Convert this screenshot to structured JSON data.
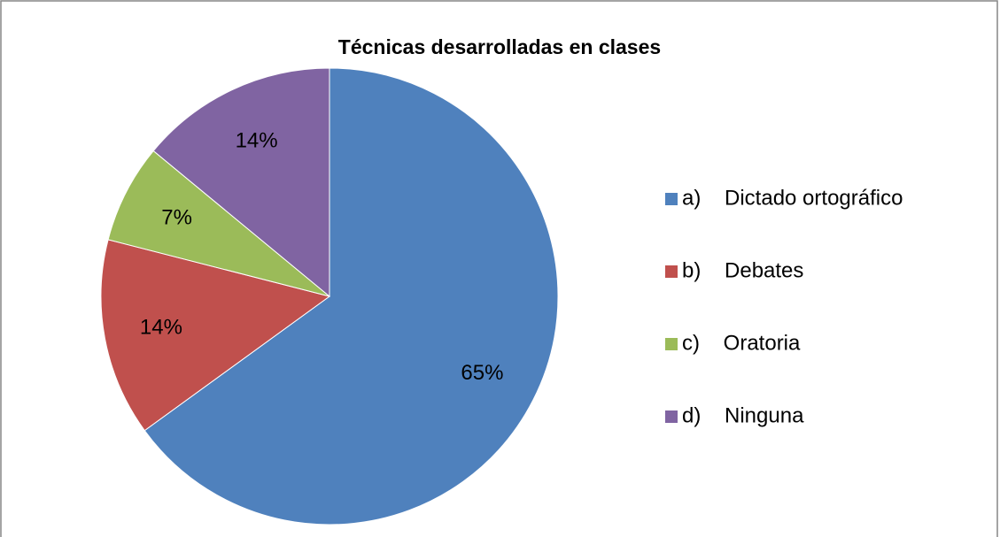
{
  "chart_data": {
    "type": "pie",
    "title": "Técnicas desarrolladas en clases",
    "categories": [
      "a)    Dictado ortográfico",
      "b)    Debates",
      "c)    Oratoria",
      "d)    Ninguna"
    ],
    "values": [
      65,
      14,
      7,
      14
    ],
    "value_labels": [
      "65%",
      "14%",
      "7%",
      "14%"
    ],
    "colors": [
      "#4f81bd",
      "#c0504d",
      "#9bbb59",
      "#8064a2"
    ],
    "legend": "right"
  }
}
